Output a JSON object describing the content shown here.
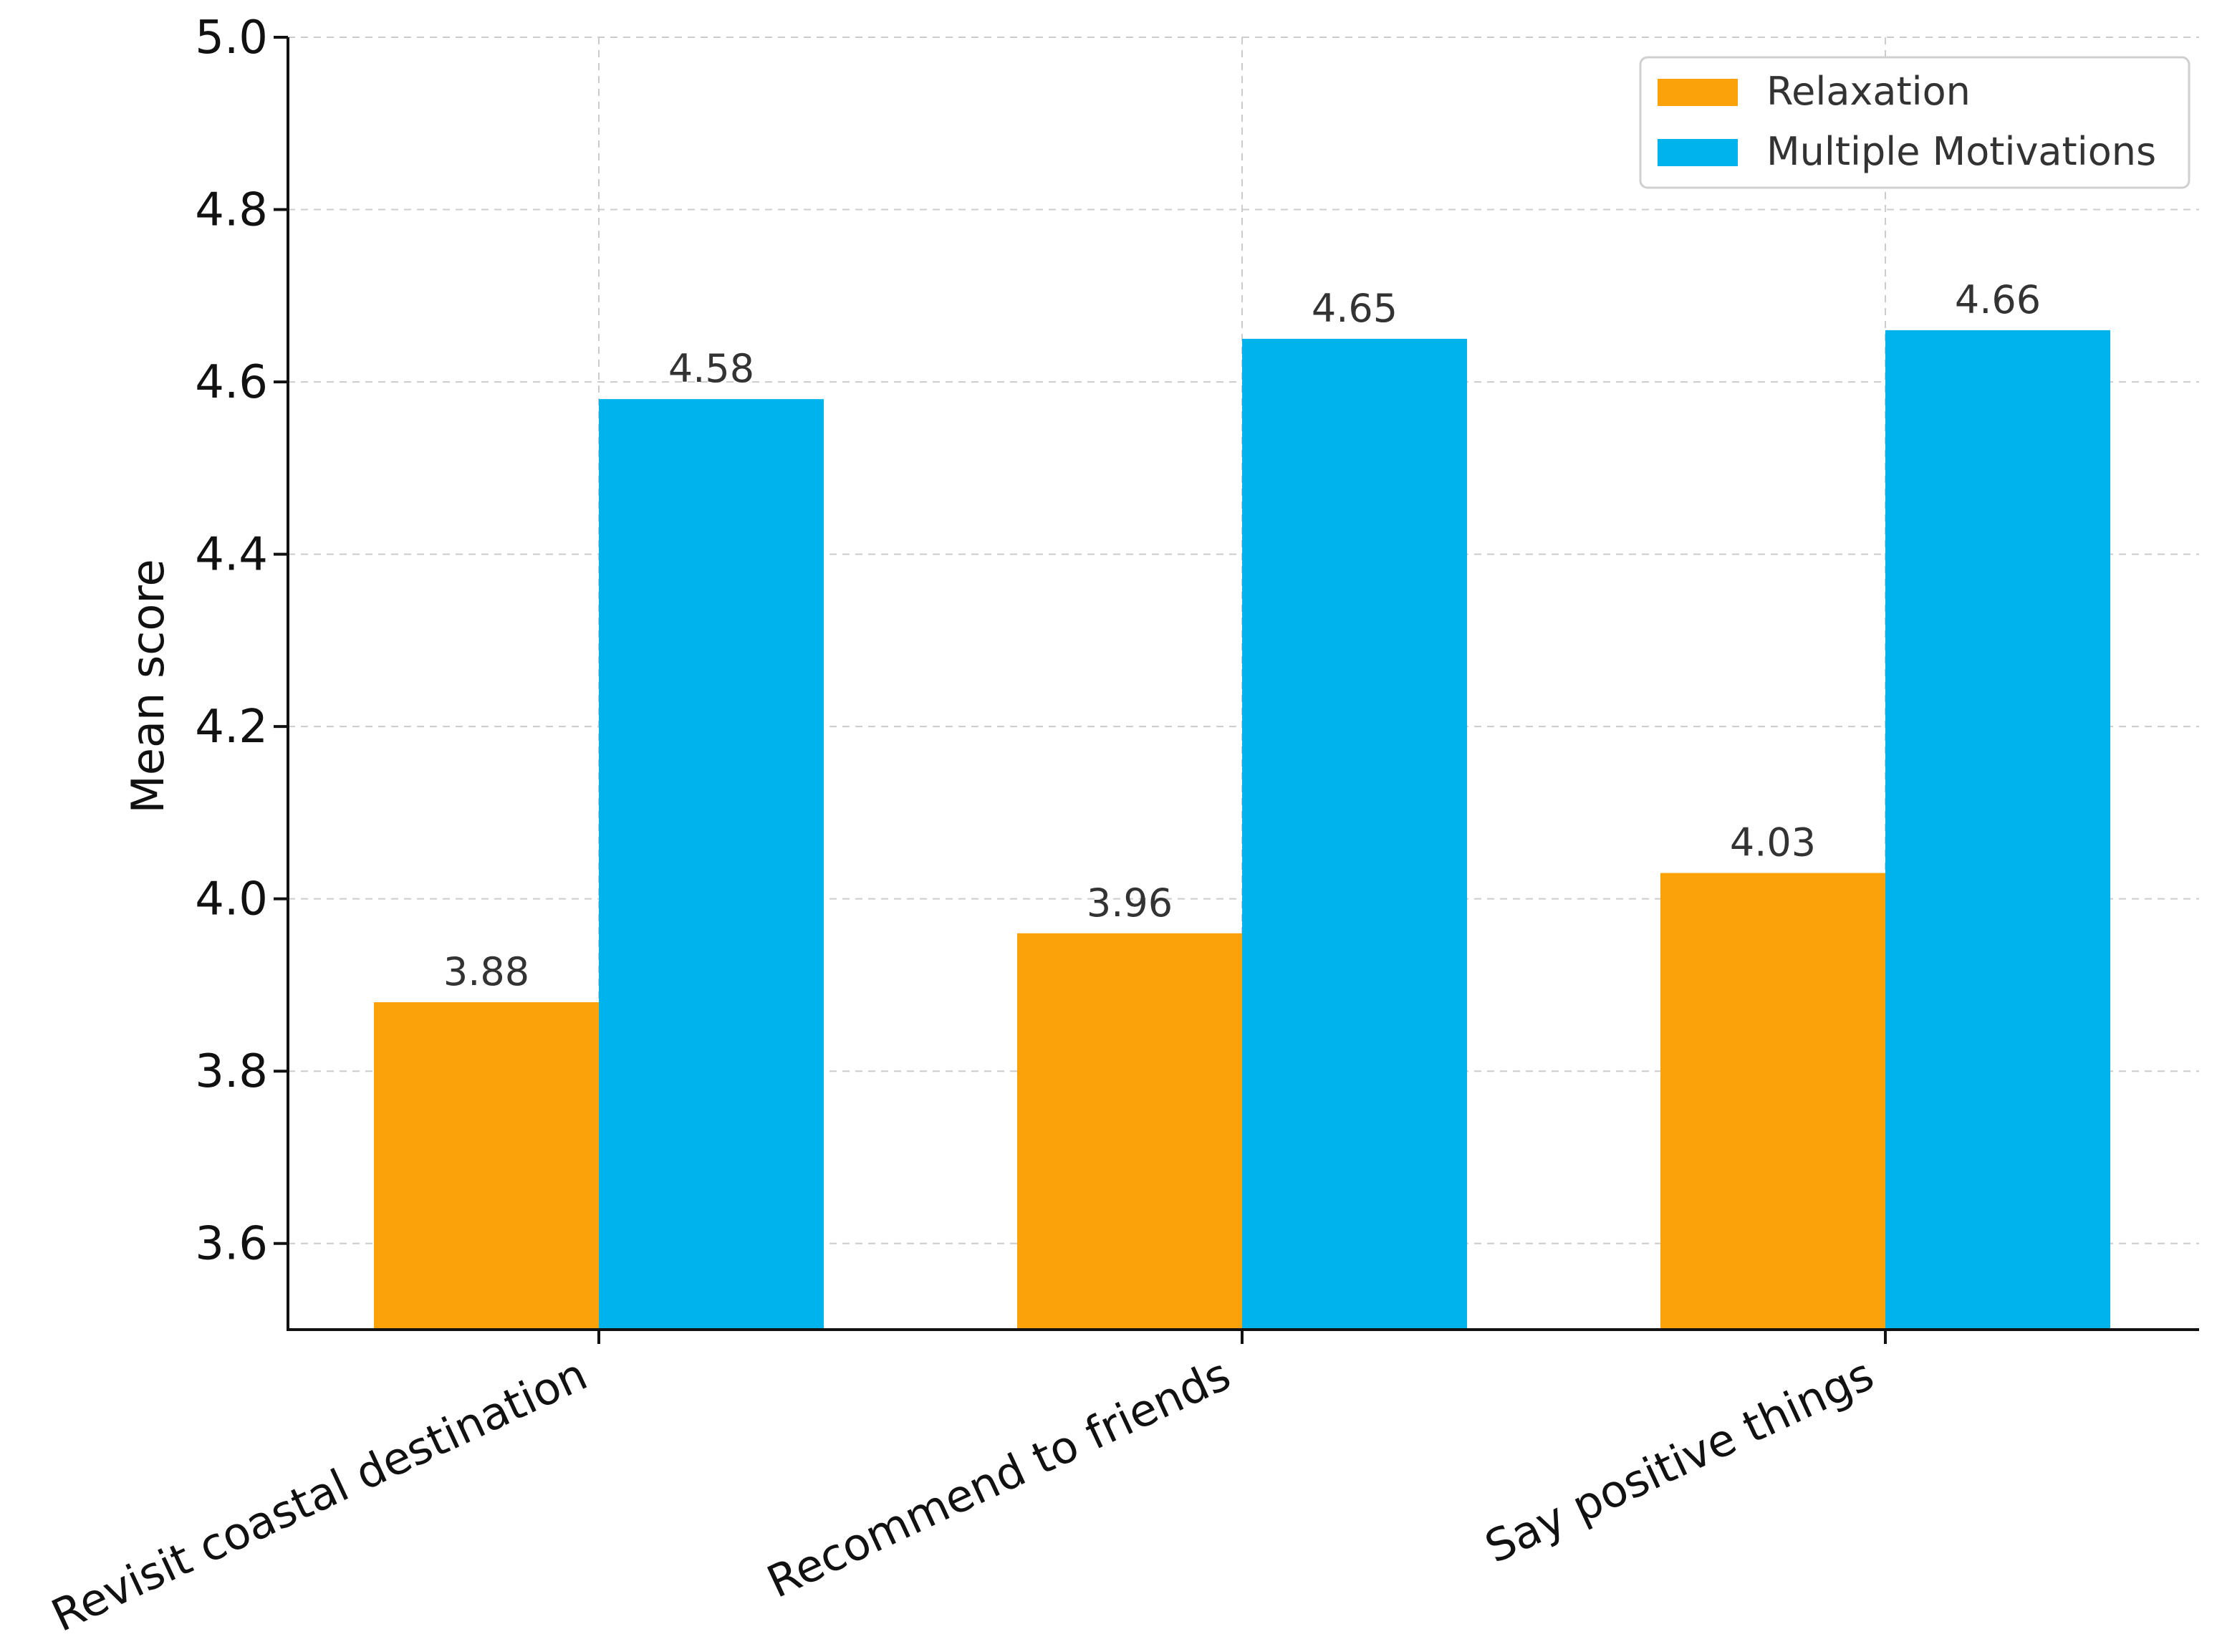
{
  "chart_data": {
    "type": "bar",
    "title": "",
    "xlabel": "",
    "ylabel": "Mean score",
    "ylim": [
      3.5,
      5.0
    ],
    "yticks": [
      3.6,
      3.8,
      4.0,
      4.2,
      4.4,
      4.6,
      4.8,
      5.0
    ],
    "ytick_labels": [
      "3.6",
      "3.8",
      "4.0",
      "4.2",
      "4.4",
      "4.6",
      "4.8",
      "5.0"
    ],
    "grid": true,
    "legend_position": "top-right",
    "categories": [
      "Revisit coastal destination",
      "Recommend to friends",
      "Say positive things"
    ],
    "series": [
      {
        "name": "Relaxation",
        "color": "#FBA10A",
        "values": [
          3.88,
          3.96,
          4.03
        ],
        "labels": [
          "3.88",
          "3.96",
          "4.03"
        ]
      },
      {
        "name": "Multiple Motivations",
        "color": "#00B3EB",
        "values": [
          4.58,
          4.65,
          4.66
        ],
        "labels": [
          "4.58",
          "4.65",
          "4.66"
        ]
      }
    ]
  }
}
